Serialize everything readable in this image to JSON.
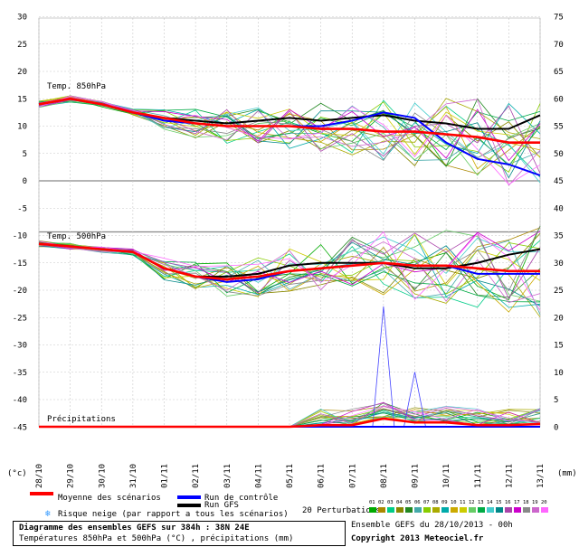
{
  "chart_data": {
    "type": "line",
    "title": "Diagramme des ensembles GEFS sur 384h : 38N 24E",
    "subtitle": "Températures 850hPa et 500hPa (°C) , précipitations (mm)",
    "left_unit": "(°c)",
    "right_unit": "(mm)",
    "left_ticks": [
      30,
      25,
      20,
      15,
      10,
      5,
      0,
      -5,
      -10,
      -15,
      -20,
      -25,
      -30,
      -35,
      -40,
      -45
    ],
    "right_ticks": [
      75,
      70,
      65,
      60,
      55,
      50,
      45,
      40,
      35,
      30,
      25,
      20,
      15,
      10,
      5,
      0
    ],
    "x_dates": [
      "28/10",
      "29/10",
      "30/10",
      "31/10",
      "01/11",
      "02/11",
      "03/11",
      "04/11",
      "05/11",
      "06/11",
      "07/11",
      "08/11",
      "09/11",
      "10/11",
      "11/11",
      "12/11",
      "13/11"
    ],
    "panels": {
      "t850_label": "Temp. 850hPa",
      "t500_label": "Temp. 500hPa",
      "precip_label": "Précipitations"
    },
    "series": [
      {
        "name": "Moyenne des scénarios",
        "color": "#ff0000",
        "t850": [
          14,
          15,
          14,
          12.5,
          11.5,
          10.5,
          10,
          10,
          10,
          9.5,
          9.5,
          9,
          9,
          8.5,
          8,
          7,
          7
        ],
        "t500": [
          -11.5,
          -12,
          -12.5,
          -13,
          -16,
          -17.5,
          -18,
          -17.5,
          -16.5,
          -16,
          -15.5,
          -15,
          -15.5,
          -15.5,
          -16,
          -16.5,
          -16.5
        ],
        "precip": [
          0,
          0,
          0,
          0,
          0,
          0,
          0,
          0,
          0,
          0.3,
          0.3,
          1.5,
          0.8,
          0.8,
          0.3,
          0.3,
          0.5
        ]
      },
      {
        "name": "Run de contrôle",
        "color": "#0000ff",
        "t850": [
          14,
          15,
          14,
          12.5,
          11,
          10.5,
          10,
          10,
          10,
          10,
          11,
          12.5,
          11.5,
          7,
          4,
          3,
          1
        ],
        "t500": [
          -11.5,
          -12,
          -12.5,
          -13,
          -16,
          -17.5,
          -18.5,
          -18,
          -16.5,
          -16,
          -15.5,
          -15,
          -15.5,
          -15.5,
          -17,
          -17,
          -17
        ],
        "precip": [
          0,
          0,
          0,
          0,
          0,
          0,
          0,
          0,
          0,
          0,
          0,
          0,
          0,
          0,
          0,
          0,
          0
        ]
      },
      {
        "name": "Run GFS",
        "color": "#000000",
        "t850": [
          14,
          15,
          14,
          12.5,
          11.5,
          11,
          10.5,
          11,
          11.5,
          11,
          11.5,
          12,
          11,
          10.5,
          9.5,
          9.5,
          12
        ],
        "t500": [
          -11.5,
          -12,
          -12.5,
          -13,
          -16,
          -17.5,
          -17.5,
          -17,
          -15.5,
          -15,
          -15,
          -15,
          -16,
          -16,
          -15,
          -13.5,
          -12.5
        ],
        "precip": [
          0,
          0,
          0,
          0,
          0,
          0,
          0,
          0,
          0,
          0,
          0,
          0,
          0,
          0,
          0,
          0,
          0
        ]
      }
    ],
    "perturbation_precip_peaks": [
      {
        "label": "08/11",
        "value": 22
      },
      {
        "label": "09/11",
        "value": 10
      }
    ],
    "x_units": "date",
    "grid": true
  },
  "legend": {
    "mean_label": "Moyenne des scénarios",
    "snow_label": "Risque neige (par rapport a tous les scénarios)",
    "control_label": "Run de contrôle",
    "gfs_label": "Run GFS",
    "perturbations_label": "20 Perturbations",
    "perturbation_numbers": [
      "01",
      "02",
      "03",
      "04",
      "05",
      "06",
      "07",
      "08",
      "09",
      "10",
      "11",
      "12",
      "13",
      "14",
      "15",
      "16",
      "17",
      "18",
      "19",
      "20"
    ],
    "perturbation_colors": [
      "#00aa00",
      "#aa8800",
      "#00cc88",
      "#888800",
      "#228822",
      "#44aaaa",
      "#88cc00",
      "#aaaa00",
      "#00aaaa",
      "#ccaa00",
      "#cccc00",
      "#66cc66",
      "#00aa44",
      "#44cccc",
      "#008888",
      "#aa44aa",
      "#cc00cc",
      "#888888",
      "#cc66cc",
      "#ff66ff"
    ]
  },
  "footer": {
    "line1": "Diagramme des ensembles GEFS sur 384h : 38N 24E",
    "line2": "Températures 850hPa et 500hPa (°C) , précipitations (mm)",
    "run_info": "Ensemble GEFS du 28/10/2013 - 00h",
    "copyright": "Copyright 2013 Meteociel.fr"
  }
}
